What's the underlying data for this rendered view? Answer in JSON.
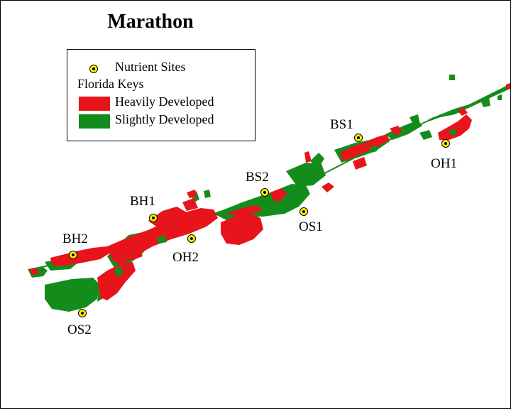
{
  "title": "Marathon",
  "legend": {
    "site_label": "Nutrient Sites",
    "group_label": "Florida Keys",
    "heavy_label": "Heavily Developed",
    "slight_label": "Slightly Developed"
  },
  "colors": {
    "heavy": "#e8141c",
    "slight": "#148c1c",
    "site_fill": "#ffee00",
    "site_dot": "#000000"
  },
  "sites": [
    {
      "id": "BS1",
      "label": "BS1"
    },
    {
      "id": "OH1",
      "label": "OH1"
    },
    {
      "id": "BS2",
      "label": "BS2"
    },
    {
      "id": "OS1",
      "label": "OS1"
    },
    {
      "id": "BH1",
      "label": "BH1"
    },
    {
      "id": "OH2",
      "label": "OH2"
    },
    {
      "id": "BH2",
      "label": "BH2"
    },
    {
      "id": "OS2",
      "label": "OS2"
    }
  ]
}
